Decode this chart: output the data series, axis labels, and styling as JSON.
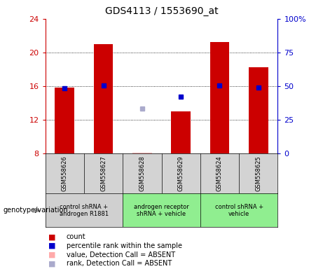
{
  "title": "GDS4113 / 1553690_at",
  "samples": [
    "GSM558626",
    "GSM558627",
    "GSM558628",
    "GSM558629",
    "GSM558624",
    "GSM558625"
  ],
  "bar_values": [
    15.8,
    21.0,
    null,
    13.0,
    21.2,
    18.2
  ],
  "bar_absent": [
    null,
    null,
    8.1,
    null,
    null,
    null
  ],
  "rank_values": [
    15.7,
    16.1,
    null,
    14.7,
    16.1,
    15.8
  ],
  "rank_absent": [
    null,
    null,
    13.3,
    null,
    null,
    null
  ],
  "ylim_left": [
    8,
    24
  ],
  "ylim_right": [
    0,
    100
  ],
  "yticks_left": [
    8,
    12,
    16,
    20,
    24
  ],
  "yticks_right": [
    0,
    25,
    50,
    75,
    100
  ],
  "ytick_labels_left": [
    "8",
    "12",
    "16",
    "20",
    "24"
  ],
  "ytick_labels_right": [
    "0",
    "25",
    "50",
    "75",
    "100%"
  ],
  "groups": [
    {
      "label": "control shRNA +\nandrogen R1881",
      "color": "#d0d0d0",
      "start": 0,
      "end": 2
    },
    {
      "label": "androgen receptor\nshRNA + vehicle",
      "color": "#90ee90",
      "start": 2,
      "end": 4
    },
    {
      "label": "control shRNA +\nvehicle",
      "color": "#90ee90",
      "start": 4,
      "end": 6
    }
  ],
  "bar_color": "#cc0000",
  "bar_absent_color": "#ffaaaa",
  "rank_color": "#0000cc",
  "rank_absent_color": "#aaaacc",
  "bar_width": 0.5,
  "sample_bg_color": "#d3d3d3",
  "plot_bg_color": "#ffffff",
  "left_axis_color": "#cc0000",
  "right_axis_color": "#0000cc",
  "legend_items": [
    {
      "label": "count",
      "color": "#cc0000"
    },
    {
      "label": "percentile rank within the sample",
      "color": "#0000cc"
    },
    {
      "label": "value, Detection Call = ABSENT",
      "color": "#ffaaaa"
    },
    {
      "label": "rank, Detection Call = ABSENT",
      "color": "#aaaacc"
    }
  ],
  "genotype_label": "genotype/variation"
}
